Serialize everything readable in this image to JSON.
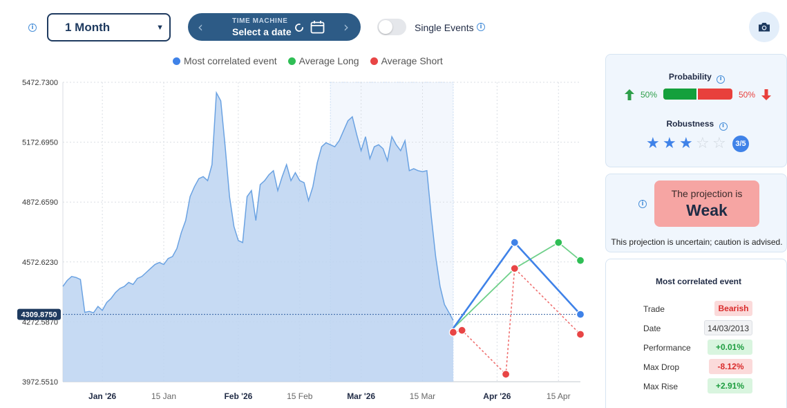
{
  "controls": {
    "period": "1 Month",
    "time_machine_caption": "TIME MACHINE",
    "time_machine_value": "Select a date",
    "single_events_label": "Single Events"
  },
  "legend": {
    "items": [
      {
        "label": "Most correlated event",
        "color": "#3f82e8"
      },
      {
        "label": "Average Long",
        "color": "#2fbe55"
      },
      {
        "label": "Average Short",
        "color": "#e84545"
      }
    ]
  },
  "chart_data": {
    "type": "area",
    "y_ticks": [
      "5472.7300",
      "5172.6950",
      "4872.6590",
      "4572.6230",
      "4272.5870",
      "3972.5510"
    ],
    "current_value_label": "4309.8750",
    "current_value": 4309.875,
    "x_ticks": [
      {
        "label": "Jan '26",
        "bold": true
      },
      {
        "label": "15 Jan",
        "bold": false
      },
      {
        "label": "Feb '26",
        "bold": true
      },
      {
        "label": "15 Feb",
        "bold": false
      },
      {
        "label": "Mar '26",
        "bold": true
      },
      {
        "label": "15 Mar",
        "bold": false
      },
      {
        "label": "Apr '26",
        "bold": true
      },
      {
        "label": "15 Apr",
        "bold": false
      }
    ],
    "x_range": [
      "2025-12-23",
      "2026-04-20"
    ],
    "y_range": [
      3972.551,
      5472.73
    ],
    "highlight_range": [
      "2026-02-22",
      "2026-03-22"
    ],
    "history": [
      [
        "2025-12-23",
        4450
      ],
      [
        "2025-12-24",
        4480
      ],
      [
        "2025-12-25",
        4500
      ],
      [
        "2025-12-26",
        4495
      ],
      [
        "2025-12-27",
        4485
      ],
      [
        "2025-12-28",
        4320
      ],
      [
        "2025-12-29",
        4325
      ],
      [
        "2025-12-30",
        4318
      ],
      [
        "2025-12-31",
        4350
      ],
      [
        "2026-01-01",
        4330
      ],
      [
        "2026-01-02",
        4370
      ],
      [
        "2026-01-03",
        4390
      ],
      [
        "2026-01-04",
        4420
      ],
      [
        "2026-01-05",
        4440
      ],
      [
        "2026-01-06",
        4450
      ],
      [
        "2026-01-07",
        4470
      ],
      [
        "2026-01-08",
        4460
      ],
      [
        "2026-01-09",
        4490
      ],
      [
        "2026-01-10",
        4500
      ],
      [
        "2026-01-11",
        4520
      ],
      [
        "2026-01-12",
        4540
      ],
      [
        "2026-01-13",
        4560
      ],
      [
        "2026-01-14",
        4570
      ],
      [
        "2026-01-15",
        4560
      ],
      [
        "2026-01-16",
        4590
      ],
      [
        "2026-01-17",
        4600
      ],
      [
        "2026-01-18",
        4640
      ],
      [
        "2026-01-19",
        4720
      ],
      [
        "2026-01-20",
        4780
      ],
      [
        "2026-01-21",
        4900
      ],
      [
        "2026-01-22",
        4950
      ],
      [
        "2026-01-23",
        4990
      ],
      [
        "2026-01-24",
        5000
      ],
      [
        "2026-01-25",
        4980
      ],
      [
        "2026-01-26",
        5060
      ],
      [
        "2026-01-27",
        5420
      ],
      [
        "2026-01-28",
        5380
      ],
      [
        "2026-01-29",
        5150
      ],
      [
        "2026-01-30",
        4900
      ],
      [
        "2026-01-31",
        4750
      ],
      [
        "2026-02-01",
        4680
      ],
      [
        "2026-02-02",
        4670
      ],
      [
        "2026-02-03",
        4900
      ],
      [
        "2026-02-04",
        4930
      ],
      [
        "2026-02-05",
        4780
      ],
      [
        "2026-02-06",
        4960
      ],
      [
        "2026-02-07",
        4980
      ],
      [
        "2026-02-08",
        5010
      ],
      [
        "2026-02-09",
        5030
      ],
      [
        "2026-02-10",
        4930
      ],
      [
        "2026-02-11",
        5000
      ],
      [
        "2026-02-12",
        5060
      ],
      [
        "2026-02-13",
        4980
      ],
      [
        "2026-02-14",
        5020
      ],
      [
        "2026-02-15",
        4980
      ],
      [
        "2026-02-16",
        4970
      ],
      [
        "2026-02-17",
        4880
      ],
      [
        "2026-02-18",
        4950
      ],
      [
        "2026-02-19",
        5070
      ],
      [
        "2026-02-20",
        5150
      ],
      [
        "2026-02-21",
        5170
      ],
      [
        "2026-02-22",
        5160
      ],
      [
        "2026-02-23",
        5150
      ],
      [
        "2026-02-24",
        5180
      ],
      [
        "2026-02-25",
        5230
      ],
      [
        "2026-02-26",
        5280
      ],
      [
        "2026-02-27",
        5300
      ],
      [
        "2026-02-28",
        5210
      ],
      [
        "2026-03-01",
        5130
      ],
      [
        "2026-03-02",
        5200
      ],
      [
        "2026-03-03",
        5090
      ],
      [
        "2026-03-04",
        5150
      ],
      [
        "2026-03-05",
        5160
      ],
      [
        "2026-03-06",
        5140
      ],
      [
        "2026-03-07",
        5080
      ],
      [
        "2026-03-08",
        5200
      ],
      [
        "2026-03-09",
        5160
      ],
      [
        "2026-03-10",
        5130
      ],
      [
        "2026-03-11",
        5180
      ],
      [
        "2026-03-12",
        5030
      ],
      [
        "2026-03-13",
        5040
      ],
      [
        "2026-03-14",
        5030
      ],
      [
        "2026-03-15",
        5025
      ],
      [
        "2026-03-16",
        5030
      ],
      [
        "2026-03-17",
        4800
      ],
      [
        "2026-03-18",
        4600
      ],
      [
        "2026-03-19",
        4450
      ],
      [
        "2026-03-20",
        4360
      ],
      [
        "2026-03-21",
        4320
      ],
      [
        "2026-03-22",
        4280
      ]
    ],
    "projections": {
      "most_correlated": [
        [
          "2026-03-22",
          4240
        ],
        [
          "2026-04-05",
          4670
        ],
        [
          "2026-04-20",
          4310
        ]
      ],
      "average_long": [
        [
          "2026-03-22",
          4240
        ],
        [
          "2026-04-05",
          4540
        ],
        [
          "2026-04-15",
          4670
        ],
        [
          "2026-04-20",
          4580
        ]
      ],
      "average_short": [
        [
          "2026-03-22",
          4220
        ],
        [
          "2026-03-24",
          4230
        ],
        [
          "2026-04-03",
          4010
        ],
        [
          "2026-04-05",
          4540
        ],
        [
          "2026-04-20",
          4210
        ]
      ]
    }
  },
  "probability": {
    "title": "Probability",
    "up_label": "50%",
    "down_label": "50%",
    "up_fraction": 0.5
  },
  "robustness": {
    "title": "Robustness",
    "rating": 3,
    "max": 5,
    "badge": "3/5"
  },
  "projection": {
    "prefix": "The projection is",
    "strength": "Weak",
    "caption": "This projection is uncertain; caution is advised."
  },
  "event": {
    "title": "Most correlated event",
    "rows": [
      {
        "label": "Trade",
        "value": "Bearish",
        "style": "red"
      },
      {
        "label": "Date",
        "value": "14/03/2013",
        "style": "neutral"
      },
      {
        "label": "Performance",
        "value": "+0.01%",
        "style": "green"
      },
      {
        "label": "Max Drop",
        "value": "-8.12%",
        "style": "red"
      },
      {
        "label": "Max Rise",
        "value": "+2.91%",
        "style": "green"
      }
    ]
  }
}
